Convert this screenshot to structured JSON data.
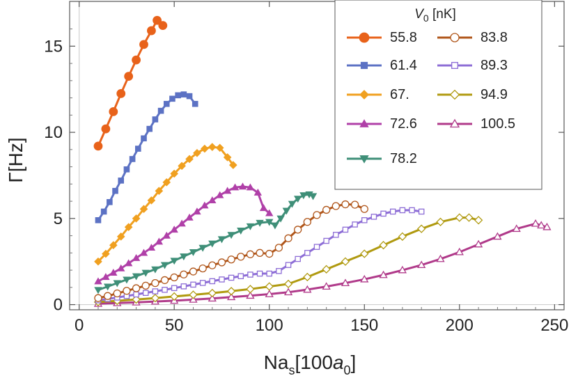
{
  "chart_data": {
    "type": "line",
    "title": "",
    "xlabel": "Na",
    "xlabel_sub": "s",
    "xlabel_rest": "[100",
    "xlabel_italic": "a",
    "xlabel_italic_sub": "0",
    "xlabel_close": "]",
    "ylabel": "Γ[Hz]",
    "xlim": [
      -5,
      255
    ],
    "ylim": [
      -0.3,
      17.6
    ],
    "xticks": [
      0,
      50,
      100,
      150,
      200,
      250
    ],
    "yticks": [
      0,
      5,
      10,
      15
    ],
    "xtick_labels": [
      "0",
      "50",
      "100",
      "150",
      "200",
      "250"
    ],
    "ytick_labels": [
      "0",
      "5",
      "10",
      "15"
    ],
    "legend": {
      "title_symbol": "V",
      "title_sub": "0",
      "title_unit": " [nK]",
      "placement": "top-right"
    },
    "series": [
      {
        "name": "55.8",
        "color": "#e8621a",
        "marker": "circle-filled",
        "x": [
          10,
          14,
          18,
          22,
          26,
          30,
          34,
          38,
          41,
          44
        ],
        "y": [
          9.2,
          10.2,
          11.2,
          12.25,
          13.25,
          14.2,
          15.1,
          15.9,
          16.5,
          16.2
        ]
      },
      {
        "name": "61.4",
        "color": "#5c72c4",
        "marker": "square-filled",
        "x": [
          10,
          13,
          16,
          19,
          22,
          25,
          28,
          31,
          34,
          37,
          40,
          43,
          46,
          49,
          52,
          55,
          58,
          61
        ],
        "y": [
          4.9,
          5.4,
          5.95,
          6.6,
          7.2,
          7.85,
          8.45,
          9.05,
          9.65,
          10.2,
          10.75,
          11.25,
          11.65,
          11.95,
          12.15,
          12.2,
          12.1,
          11.65
        ]
      },
      {
        "name": "67.",
        "color": "#f0a020",
        "marker": "diamond-filled",
        "x": [
          10,
          14,
          18,
          22,
          26,
          30,
          34,
          38,
          42,
          46,
          50,
          54,
          58,
          62,
          66,
          70,
          74,
          78,
          81
        ],
        "y": [
          2.5,
          2.95,
          3.45,
          3.95,
          4.5,
          5.0,
          5.55,
          6.05,
          6.6,
          7.1,
          7.6,
          8.05,
          8.45,
          8.8,
          9.05,
          9.15,
          9.1,
          8.55,
          8.1
        ]
      },
      {
        "name": "72.6",
        "color": "#b040a8",
        "marker": "triangle-up-filled",
        "x": [
          10,
          14,
          18,
          22,
          26,
          30,
          34,
          38,
          42,
          46,
          50,
          54,
          58,
          62,
          66,
          70,
          74,
          78,
          82,
          86,
          90,
          94,
          97,
          100
        ],
        "y": [
          1.35,
          1.6,
          1.85,
          2.1,
          2.4,
          2.7,
          3.0,
          3.3,
          3.65,
          4.0,
          4.35,
          4.7,
          5.05,
          5.4,
          5.75,
          6.05,
          6.35,
          6.6,
          6.8,
          6.85,
          6.8,
          6.5,
          5.6,
          5.3
        ]
      },
      {
        "name": "78.2",
        "color": "#3f8f78",
        "marker": "triangle-down-filled",
        "x": [
          10,
          15,
          20,
          25,
          30,
          35,
          40,
          45,
          50,
          55,
          60,
          65,
          70,
          75,
          80,
          85,
          90,
          95,
          100,
          103,
          106,
          109,
          112,
          115,
          118,
          121,
          123
        ],
        "y": [
          0.85,
          1.05,
          1.25,
          1.45,
          1.65,
          1.85,
          2.05,
          2.3,
          2.55,
          2.8,
          3.05,
          3.3,
          3.55,
          3.8,
          4.05,
          4.3,
          4.55,
          4.75,
          4.8,
          4.6,
          5.0,
          5.45,
          5.85,
          6.15,
          6.35,
          6.4,
          6.3
        ]
      },
      {
        "name": "83.8",
        "color": "#b0561a",
        "marker": "circle-open",
        "x": [
          10,
          15,
          20,
          25,
          30,
          35,
          40,
          45,
          50,
          55,
          60,
          65,
          70,
          75,
          80,
          85,
          90,
          95,
          100,
          105,
          110,
          115,
          120,
          125,
          130,
          135,
          140,
          145,
          150
        ],
        "y": [
          0.38,
          0.5,
          0.65,
          0.8,
          0.95,
          1.1,
          1.25,
          1.42,
          1.58,
          1.75,
          1.92,
          2.1,
          2.28,
          2.45,
          2.62,
          2.78,
          2.92,
          3.0,
          2.95,
          3.3,
          3.85,
          4.35,
          4.8,
          5.2,
          5.5,
          5.72,
          5.82,
          5.8,
          5.55
        ]
      },
      {
        "name": "89.3",
        "color": "#8d6dd6",
        "marker": "square-open",
        "x": [
          10,
          15,
          20,
          25,
          30,
          35,
          40,
          45,
          50,
          55,
          60,
          65,
          70,
          75,
          80,
          85,
          90,
          95,
          100,
          105,
          110,
          115,
          120,
          125,
          130,
          135,
          140,
          145,
          150,
          155,
          160,
          165,
          170,
          175,
          180
        ],
        "y": [
          0.25,
          0.33,
          0.41,
          0.5,
          0.59,
          0.68,
          0.77,
          0.86,
          0.96,
          1.06,
          1.16,
          1.26,
          1.36,
          1.46,
          1.56,
          1.65,
          1.74,
          1.8,
          1.8,
          1.95,
          2.3,
          2.65,
          3.0,
          3.35,
          3.7,
          4.05,
          4.35,
          4.65,
          4.9,
          5.1,
          5.28,
          5.4,
          5.48,
          5.48,
          5.4
        ]
      },
      {
        "name": "94.9",
        "color": "#b09a10",
        "marker": "diamond-open",
        "x": [
          10,
          20,
          30,
          40,
          50,
          60,
          70,
          80,
          90,
          100,
          110,
          120,
          130,
          140,
          150,
          160,
          170,
          180,
          190,
          200,
          205,
          210
        ],
        "y": [
          0.15,
          0.22,
          0.3,
          0.38,
          0.47,
          0.57,
          0.67,
          0.78,
          0.9,
          1.05,
          1.2,
          1.6,
          2.05,
          2.5,
          2.95,
          3.45,
          3.95,
          4.4,
          4.8,
          5.05,
          5.05,
          4.9
        ]
      },
      {
        "name": "100.5",
        "color": "#b03a8a",
        "marker": "triangle-up-open",
        "x": [
          10,
          20,
          30,
          40,
          50,
          60,
          70,
          80,
          90,
          100,
          110,
          120,
          130,
          140,
          150,
          160,
          170,
          180,
          190,
          200,
          210,
          220,
          230,
          240,
          243,
          246
        ],
        "y": [
          0.05,
          0.09,
          0.13,
          0.18,
          0.23,
          0.29,
          0.36,
          0.44,
          0.52,
          0.61,
          0.72,
          0.87,
          1.05,
          1.25,
          1.47,
          1.72,
          2.0,
          2.3,
          2.65,
          3.05,
          3.5,
          3.95,
          4.4,
          4.7,
          4.6,
          4.5
        ]
      }
    ]
  }
}
